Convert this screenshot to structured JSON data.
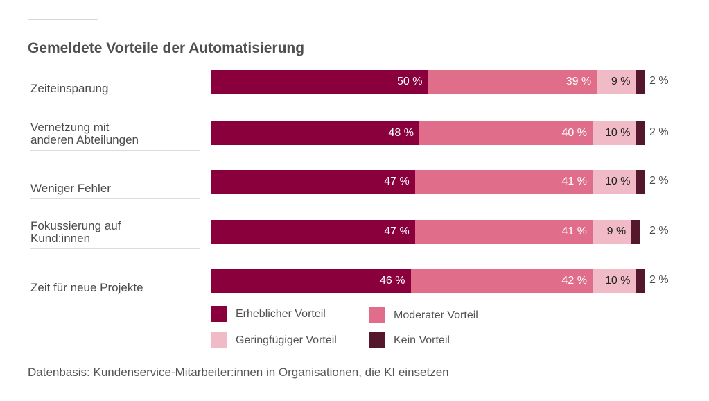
{
  "chart_data": {
    "type": "bar",
    "orientation": "horizontal",
    "stacked": true,
    "title": "Gemeldete Vorteile der Automatisierung",
    "categories": [
      "Zeiteinsparung",
      "Vernetzung mit anderen Abteilungen",
      "Weniger Fehler",
      "Fokussierung auf Kund:innen",
      "Zeit für neue Projekte"
    ],
    "category_lines": [
      [
        "Zeiteinsparung"
      ],
      [
        "Vernetzung mit",
        "anderen Abteilungen"
      ],
      [
        "Weniger Fehler"
      ],
      [
        "Fokussierung auf",
        "Kund:innen"
      ],
      [
        "Zeit für neue Projekte"
      ]
    ],
    "series": [
      {
        "name": "Erheblicher Vorteil",
        "color": "#8a003d",
        "label_color": "#ffffff",
        "values": [
          50,
          48,
          47,
          47,
          46
        ]
      },
      {
        "name": "Moderater Vorteil",
        "color": "#e06d8a",
        "label_color": "#ffffff",
        "values": [
          39,
          40,
          41,
          41,
          42
        ]
      },
      {
        "name": "Geringfügiger Vorteil",
        "color": "#f0bbc6",
        "label_color": "#222222",
        "values": [
          9,
          10,
          10,
          9,
          10
        ]
      },
      {
        "name": "Kein Vorteil",
        "color": "#55172b",
        "label_color": "#4a4a4a",
        "values": [
          2,
          2,
          2,
          2,
          2
        ]
      }
    ],
    "value_suffix": " %",
    "xlim": [
      0,
      100
    ],
    "legend_position": "bottom",
    "grid": false,
    "xlabel": "",
    "ylabel": ""
  },
  "legend": [
    {
      "label": "Erheblicher Vorteil",
      "color": "#8a003d"
    },
    {
      "label": "Moderater Vorteil",
      "color": "#e06d8a"
    },
    {
      "label": "Geringfügiger Vorteil",
      "color": "#f0bbc6"
    },
    {
      "label": "Kein Vorteil",
      "color": "#55172b"
    }
  ],
  "footnote": "Datenbasis: Kundenservice-Mitarbeiter:innen in Organisationen, die KI einsetzen"
}
